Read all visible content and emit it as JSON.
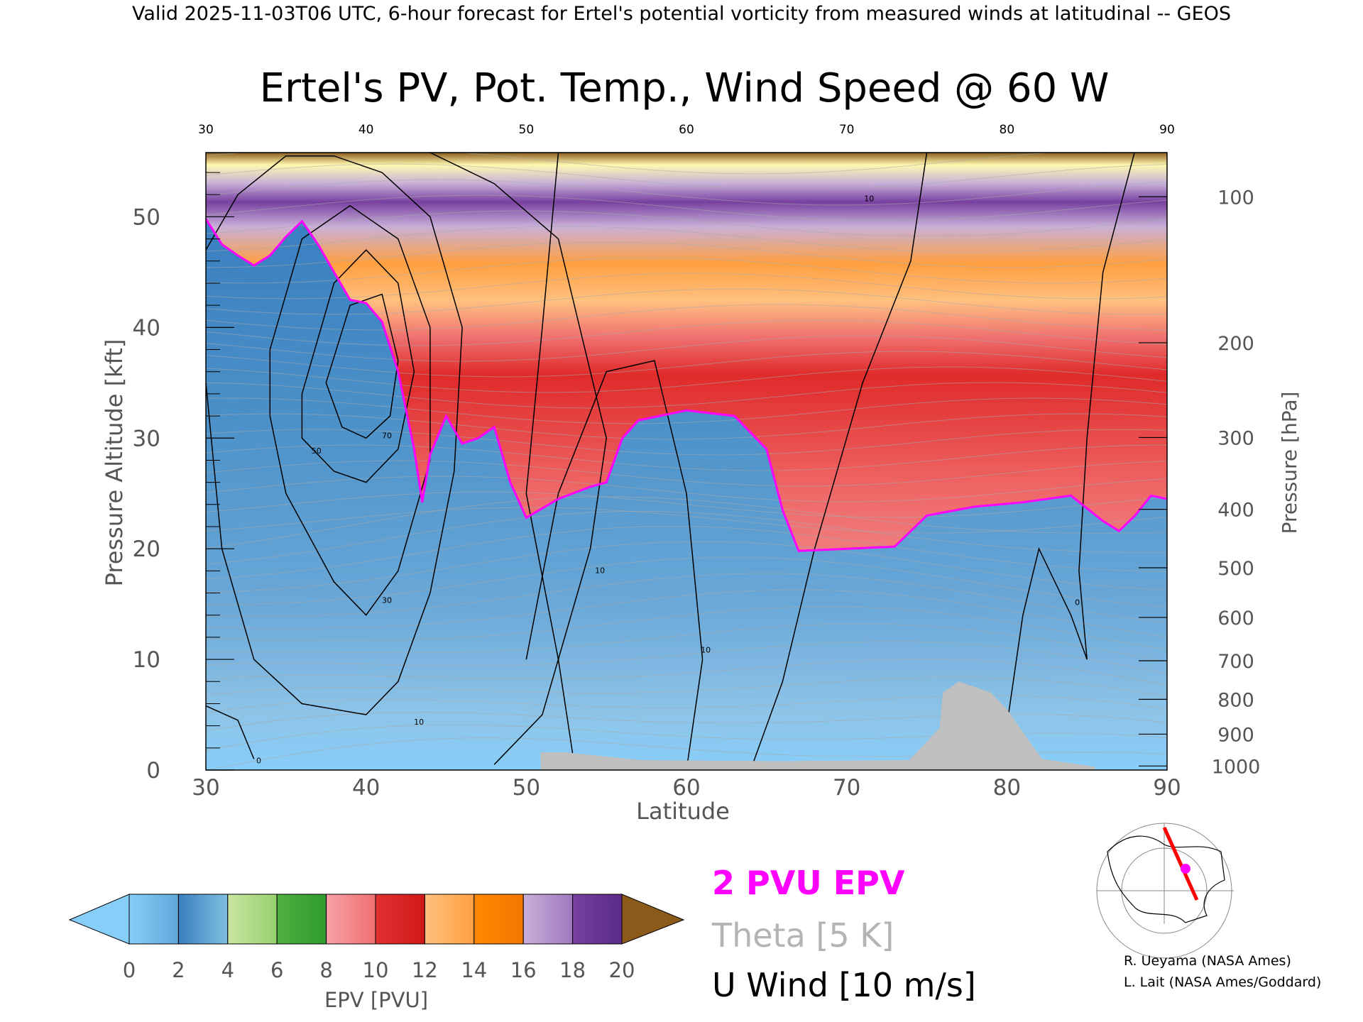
{
  "header": {
    "valid_line": "Valid 2025-11-03T06 UTC, 6-hour forecast for Ertel's potential vorticity from measured winds at latitudinal -- GEOS"
  },
  "chart_data": {
    "type": "heatmap",
    "title": "Ertel's PV, Pot. Temp., Wind Speed @ 60 W",
    "xlabel": "Latitude",
    "ylabel_left": "Pressure Altitude [kft]",
    "ylabel_right": "Pressure [hPa]",
    "x_ticks": [
      30,
      40,
      50,
      60,
      70,
      80,
      90
    ],
    "top_x_ticks": [
      30,
      40,
      50,
      60,
      70,
      80,
      90
    ],
    "y_ticks": [
      0,
      10,
      20,
      30,
      40,
      50
    ],
    "pressure_ticks": [
      100,
      200,
      300,
      400,
      500,
      600,
      700,
      800,
      900,
      1000
    ],
    "xlim": [
      30,
      90
    ],
    "ylim": [
      0,
      55.8
    ],
    "colorbar": {
      "label": "EPV [PVU]",
      "ticks": [
        0,
        2,
        4,
        6,
        8,
        10,
        12,
        14,
        16,
        18,
        20
      ],
      "colors": [
        "#87cefa",
        "#5fa8d8",
        "#3a7fc0",
        "#7fbfe0",
        "#c8e6a0",
        "#98d070",
        "#50b040",
        "#2e9a2e",
        "#f8a0a8",
        "#f07070",
        "#e03030",
        "#d01818",
        "#ffc080",
        "#ffa040",
        "#ff8800",
        "#f07800",
        "#c8b0d8",
        "#a078c0",
        "#7840a0",
        "#5a2a88",
        "#fff8b0",
        "#f0e090",
        "#8b5a1a"
      ]
    },
    "tropopause_2pvu_kft": [
      {
        "lat": 30,
        "kft": 49.8
      },
      {
        "lat": 31,
        "kft": 47.5
      },
      {
        "lat": 32,
        "kft": 46.5
      },
      {
        "lat": 33,
        "kft": 45.6
      },
      {
        "lat": 34,
        "kft": 46.5
      },
      {
        "lat": 35,
        "kft": 48.2
      },
      {
        "lat": 36,
        "kft": 49.6
      },
      {
        "lat": 37,
        "kft": 47.5
      },
      {
        "lat": 38,
        "kft": 45.0
      },
      {
        "lat": 39,
        "kft": 42.5
      },
      {
        "lat": 40,
        "kft": 42.2
      },
      {
        "lat": 41,
        "kft": 40.5
      },
      {
        "lat": 42,
        "kft": 36.0
      },
      {
        "lat": 43,
        "kft": 29.0
      },
      {
        "lat": 43.5,
        "kft": 24.2
      },
      {
        "lat": 44,
        "kft": 28.5
      },
      {
        "lat": 45,
        "kft": 32.0
      },
      {
        "lat": 46,
        "kft": 29.5
      },
      {
        "lat": 47,
        "kft": 30.0
      },
      {
        "lat": 48,
        "kft": 31.0
      },
      {
        "lat": 49,
        "kft": 26.0
      },
      {
        "lat": 50,
        "kft": 22.8
      },
      {
        "lat": 52,
        "kft": 24.5
      },
      {
        "lat": 54,
        "kft": 25.6
      },
      {
        "lat": 55,
        "kft": 26.0
      },
      {
        "lat": 56,
        "kft": 30.0
      },
      {
        "lat": 57,
        "kft": 31.6
      },
      {
        "lat": 60,
        "kft": 32.5
      },
      {
        "lat": 63,
        "kft": 32.0
      },
      {
        "lat": 65,
        "kft": 29.0
      },
      {
        "lat": 66,
        "kft": 23.5
      },
      {
        "lat": 67,
        "kft": 19.8
      },
      {
        "lat": 70,
        "kft": 20.0
      },
      {
        "lat": 73,
        "kft": 20.2
      },
      {
        "lat": 75,
        "kft": 23.0
      },
      {
        "lat": 78,
        "kft": 23.8
      },
      {
        "lat": 81,
        "kft": 24.2
      },
      {
        "lat": 84,
        "kft": 24.8
      },
      {
        "lat": 86,
        "kft": 22.5
      },
      {
        "lat": 87,
        "kft": 21.6
      },
      {
        "lat": 88,
        "kft": 23.0
      },
      {
        "lat": 89,
        "kft": 24.8
      },
      {
        "lat": 90,
        "kft": 24.5
      }
    ],
    "u_wind_contour_labels": [
      {
        "text": "10",
        "lat": 54.6,
        "kft": 17.8
      },
      {
        "text": "10",
        "lat": 61.2,
        "kft": 10.6
      },
      {
        "text": "10",
        "lat": 71.4,
        "kft": 51.4
      },
      {
        "text": "10",
        "lat": 43.3,
        "kft": 4.1
      },
      {
        "text": "30",
        "lat": 41.3,
        "kft": 15.1
      },
      {
        "text": "50",
        "lat": 36.9,
        "kft": 28.6
      },
      {
        "text": "70",
        "lat": 41.3,
        "kft": 30.0
      },
      {
        "text": "0",
        "lat": 33.3,
        "kft": 0.6
      },
      {
        "text": "0",
        "lat": 84.4,
        "kft": 14.9
      }
    ],
    "surface_profile_kft": [
      {
        "lat": 50.9,
        "kft": 1.6
      },
      {
        "lat": 52.5,
        "kft": 1.6
      },
      {
        "lat": 57.1,
        "kft": 0.9
      },
      {
        "lat": 66.0,
        "kft": 0.8
      },
      {
        "lat": 73.9,
        "kft": 0.9
      },
      {
        "lat": 75.8,
        "kft": 3.8
      },
      {
        "lat": 76.0,
        "kft": 7.0
      },
      {
        "lat": 77.0,
        "kft": 8.0
      },
      {
        "lat": 79.0,
        "kft": 7.0
      },
      {
        "lat": 80.0,
        "kft": 5.5
      },
      {
        "lat": 81.2,
        "kft": 3.0
      },
      {
        "lat": 82.2,
        "kft": 1.0
      },
      {
        "lat": 85.5,
        "kft": 0.3
      }
    ],
    "legend": [
      {
        "label": "2 PVU EPV",
        "color": "#ff00ff"
      },
      {
        "label": "Theta [5 K]",
        "color": "#b4b4b4"
      },
      {
        "label": "U Wind [10 m/s]",
        "color": "#000000"
      }
    ],
    "colors": {
      "tropopause": "#ff00ff",
      "theta": "#aaaaaa",
      "wind": "#000000",
      "terrain": "#bfbfbf"
    }
  },
  "credits": {
    "line1": "R. Ueyama (NASA Ames)",
    "line2": "L. Lait (NASA Ames/Goddard)"
  }
}
